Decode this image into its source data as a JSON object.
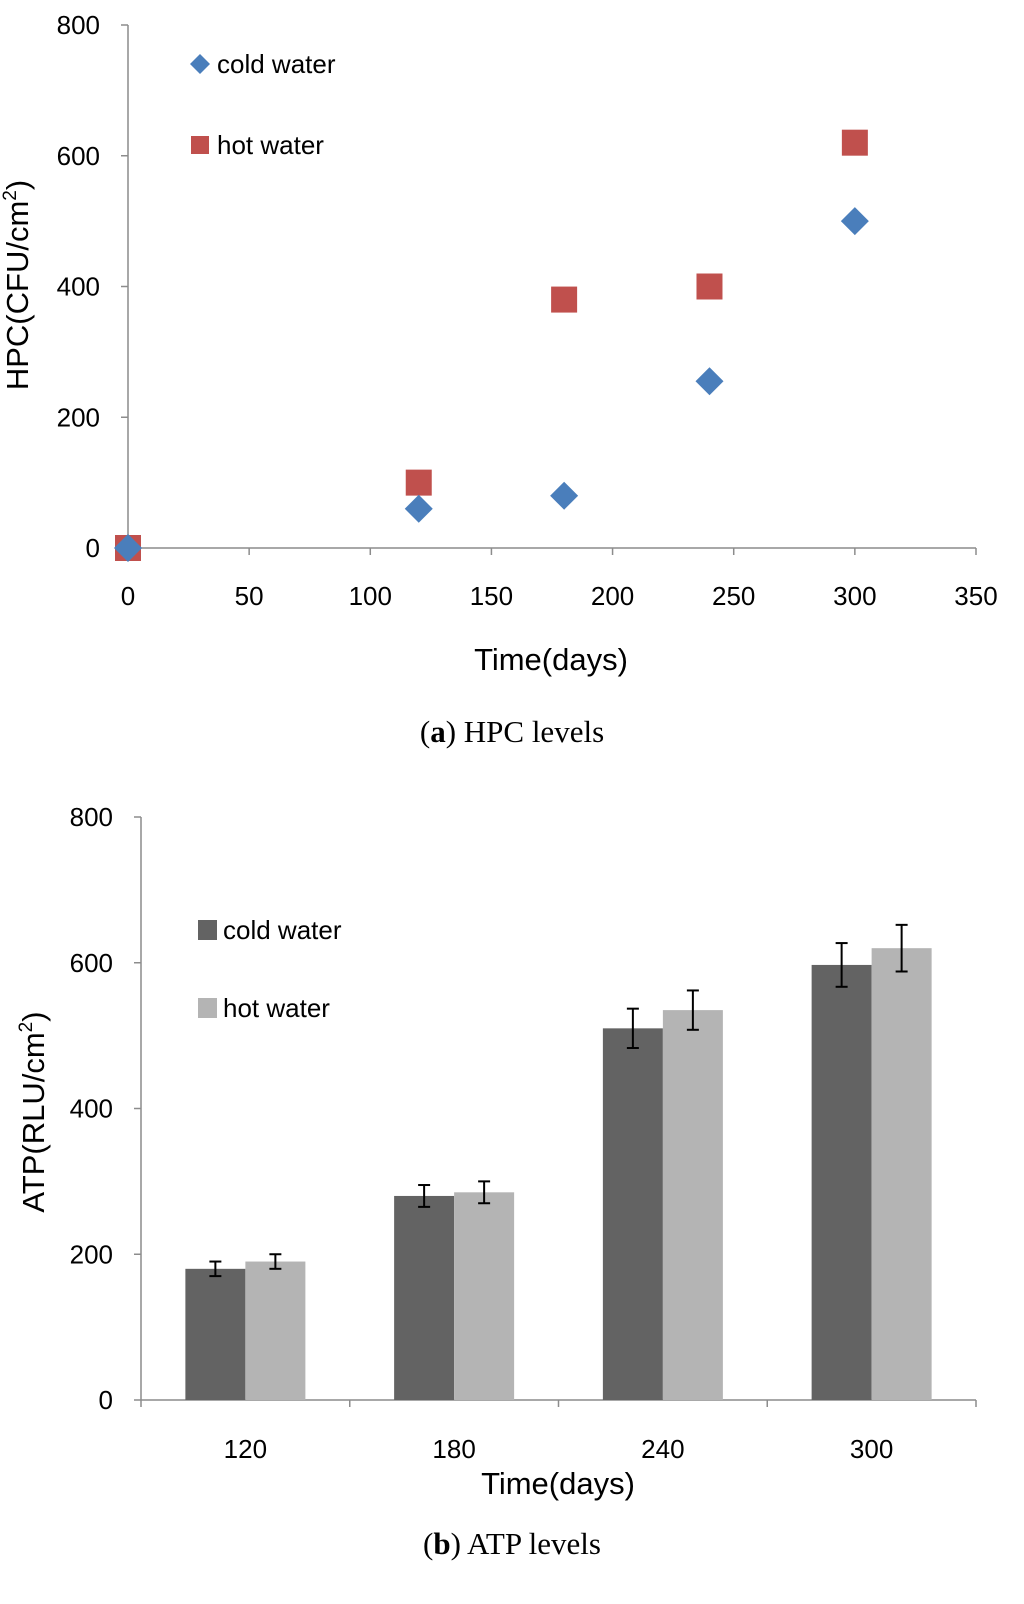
{
  "chart_data": [
    {
      "type": "scatter",
      "caption_label": "a",
      "caption_text": " HPC levels",
      "xlabel": "Time(days)",
      "ylabel": "HPC(CFU/cm",
      "ylabel_sup": "2",
      "ylabel_close": ")",
      "xlim": [
        0,
        350
      ],
      "ylim": [
        0,
        800
      ],
      "xticks": [
        0,
        50,
        100,
        150,
        200,
        250,
        300,
        350
      ],
      "yticks": [
        0,
        200,
        400,
        600,
        800
      ],
      "grid": false,
      "legend": "top-left",
      "series": [
        {
          "name": "cold water",
          "marker": "diamond",
          "color": "#4a7ebb",
          "points": [
            [
              0,
              0
            ],
            [
              120,
              60
            ],
            [
              180,
              80
            ],
            [
              240,
              255
            ],
            [
              300,
              500
            ]
          ]
        },
        {
          "name": "hot water",
          "marker": "square",
          "color": "#c0504d",
          "points": [
            [
              0,
              0
            ],
            [
              120,
              100
            ],
            [
              180,
              380
            ],
            [
              240,
              400
            ],
            [
              300,
              620
            ]
          ]
        }
      ]
    },
    {
      "type": "bar",
      "caption_label": "b",
      "caption_text": " ATP levels",
      "xlabel": "Time(days)",
      "ylabel": "ATP(RLU/cm",
      "ylabel_sup": "2",
      "ylabel_close": ")",
      "ylim": [
        0,
        800
      ],
      "yticks": [
        0,
        200,
        400,
        600,
        800
      ],
      "grid": false,
      "legend": "top-left",
      "categories": [
        "120",
        "180",
        "240",
        "300"
      ],
      "series": [
        {
          "name": "cold water",
          "color": "#636363",
          "values": [
            180,
            280,
            510,
            597
          ],
          "errors": [
            10,
            15,
            27,
            30
          ]
        },
        {
          "name": "hot water",
          "color": "#b4b4b4",
          "values": [
            190,
            285,
            535,
            620
          ],
          "errors": [
            10,
            15,
            27,
            32
          ]
        }
      ]
    }
  ]
}
